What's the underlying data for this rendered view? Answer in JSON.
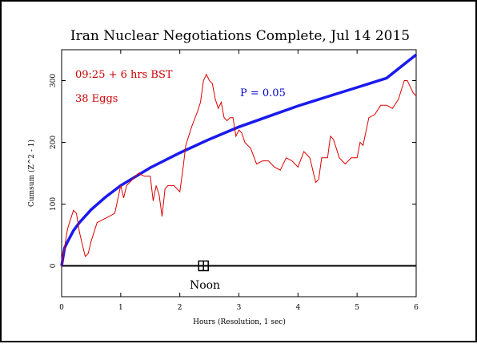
{
  "chart_data": {
    "type": "line",
    "title": "Iran Nuclear Negotiations Complete, Jul 14 2015",
    "xlabel": "Hours (Resolution, 1 sec)",
    "ylabel": "Cumsum (Z^2 - 1)",
    "xlim": [
      0,
      6
    ],
    "ylim": [
      -50,
      350
    ],
    "x_ticks": [
      "0",
      "1",
      "2",
      "3",
      "4",
      "5",
      "6"
    ],
    "y_ticks": [
      "0",
      "100",
      "200",
      "300"
    ],
    "annotations": {
      "time": "09:25 + 6 hrs BST",
      "eggs": "38 Eggs",
      "p_label": "P = 0.05",
      "noon": "Noon"
    },
    "noon_marker": {
      "x": 2.4,
      "y": 0
    },
    "colors": {
      "cumsum": "#dd0000",
      "envelope": "#1a1aee",
      "axis": "#000000"
    },
    "series": [
      {
        "role": "cumsum",
        "x": [
          0,
          0.1,
          0.2,
          0.25,
          0.3,
          0.35,
          0.4,
          0.45,
          0.5,
          0.6,
          0.7,
          0.8,
          0.9,
          1.0,
          1.05,
          1.1,
          1.2,
          1.3,
          1.4,
          1.5,
          1.55,
          1.6,
          1.65,
          1.7,
          1.75,
          1.8,
          1.9,
          2.0,
          2.05,
          2.1,
          2.2,
          2.3,
          2.35,
          2.4,
          2.45,
          2.5,
          2.55,
          2.6,
          2.65,
          2.7,
          2.75,
          2.8,
          2.85,
          2.9,
          2.95,
          3.0,
          3.05,
          3.1,
          3.2,
          3.3,
          3.4,
          3.5,
          3.6,
          3.7,
          3.8,
          3.9,
          4.0,
          4.1,
          4.2,
          4.3,
          4.35,
          4.4,
          4.5,
          4.55,
          4.6,
          4.7,
          4.8,
          4.9,
          5.0,
          5.05,
          5.1,
          5.2,
          5.3,
          5.4,
          5.5,
          5.6,
          5.7,
          5.75,
          5.8,
          5.85,
          5.9,
          5.95,
          6.0
        ],
        "y": [
          0,
          60,
          90,
          85,
          55,
          35,
          15,
          20,
          40,
          70,
          75,
          80,
          85,
          130,
          110,
          130,
          140,
          150,
          145,
          145,
          105,
          130,
          115,
          80,
          125,
          130,
          130,
          120,
          155,
          195,
          225,
          250,
          265,
          300,
          310,
          300,
          295,
          270,
          255,
          265,
          240,
          235,
          240,
          240,
          210,
          220,
          215,
          200,
          190,
          165,
          170,
          170,
          160,
          155,
          175,
          170,
          160,
          185,
          175,
          135,
          140,
          175,
          175,
          210,
          205,
          175,
          165,
          175,
          175,
          200,
          195,
          240,
          245,
          260,
          260,
          255,
          270,
          285,
          300,
          300,
          290,
          280,
          275
        ]
      },
      {
        "role": "envelope",
        "name": "P = 0.05",
        "x": [
          0,
          0.05,
          0.1,
          0.2,
          0.3,
          0.5,
          0.75,
          1.0,
          1.5,
          2.0,
          2.5,
          3.0,
          3.5,
          4.0,
          4.5,
          5.0,
          5.5,
          6.0
        ],
        "y": [
          0,
          29,
          39,
          57,
          70,
          91,
          112,
          130,
          159,
          183,
          205,
          225,
          242,
          259,
          274,
          289,
          304,
          342
        ]
      }
    ]
  }
}
